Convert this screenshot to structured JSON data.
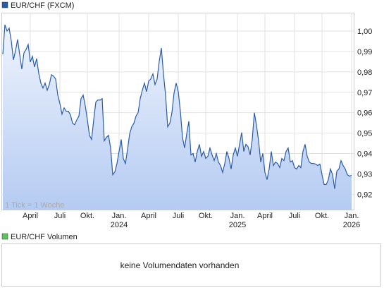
{
  "chart_data": {
    "type": "line",
    "title": "EUR/CHF (FXCM)",
    "note": "1 Tick = 1 Woche",
    "color": "#2a5caa",
    "fill_top": "#eef4fd",
    "fill_bottom": "#b5cbf2",
    "grid": true,
    "categories": [
      null,
      null,
      null,
      null,
      null,
      null,
      null,
      null,
      null,
      null,
      null,
      null,
      null,
      "April",
      null,
      null,
      null,
      null,
      null,
      null,
      null,
      null,
      null,
      null,
      null,
      null,
      null,
      "Juli",
      null,
      null,
      null,
      null,
      null,
      null,
      null,
      null,
      null,
      null,
      null,
      null,
      "Okt.",
      null,
      null,
      null,
      null,
      null,
      null,
      null,
      null,
      null,
      null,
      null,
      null,
      null,
      null,
      "Jan.\n2024",
      null,
      null,
      null,
      null,
      null,
      null,
      null,
      null,
      null,
      null,
      null,
      null,
      null,
      "April",
      null,
      null,
      null,
      null,
      null,
      null,
      null,
      null,
      null,
      null,
      null,
      null,
      null,
      "Juli",
      null,
      null,
      null,
      null,
      null,
      null,
      null,
      null,
      null,
      null,
      null,
      null,
      "Okt.",
      null,
      null,
      null,
      null,
      null,
      null,
      null,
      null,
      null,
      null,
      null,
      null,
      null,
      null,
      "Jan.\n2025",
      null,
      null,
      null,
      null,
      null,
      null,
      null,
      null,
      null,
      null,
      null,
      null,
      "April",
      null,
      null,
      null,
      null,
      null,
      null,
      null,
      null,
      null,
      null,
      null,
      null,
      null,
      "Juli",
      null,
      null,
      null,
      null,
      null,
      null,
      null,
      null,
      null,
      null,
      null,
      null,
      "Okt.",
      null,
      null,
      null,
      null,
      null,
      null,
      null,
      null,
      null,
      null,
      null,
      null,
      null,
      "Jan.\n2026"
    ],
    "values": [
      0.9886,
      1.0031,
      1.0,
      1.0014,
      0.9952,
      0.9859,
      0.9903,
      0.9959,
      0.9883,
      0.9814,
      0.9893,
      0.991,
      0.9934,
      0.9848,
      0.9876,
      0.9824,
      0.9865,
      0.9793,
      0.9745,
      0.9721,
      0.9745,
      0.971,
      0.9738,
      0.9786,
      0.9779,
      0.9765,
      0.9686,
      0.9645,
      0.9593,
      0.9624,
      0.9607,
      0.9607,
      0.9589,
      0.9548,
      0.9541,
      0.9565,
      0.9583,
      0.9669,
      0.9686,
      0.9634,
      0.9565,
      0.9489,
      0.9469,
      0.9565,
      0.9652,
      0.9662,
      0.9662,
      0.9669,
      0.9462,
      0.9479,
      0.9489,
      0.9427,
      0.9296,
      0.931,
      0.9351,
      0.941,
      0.9469,
      0.9376,
      0.9351,
      0.942,
      0.9496,
      0.9531,
      0.9548,
      0.9583,
      0.96,
      0.9669,
      0.971,
      0.9745,
      0.9703,
      0.9755,
      0.9765,
      0.979,
      0.9738,
      0.9765,
      0.9852,
      0.9917,
      0.979,
      0.9686,
      0.9531,
      0.9548,
      0.96,
      0.9696,
      0.9745,
      0.9703,
      0.9607,
      0.9479,
      0.9427,
      0.9496,
      0.9558,
      0.9393,
      0.94,
      0.9358,
      0.941,
      0.9445,
      0.9386,
      0.941,
      0.9376,
      0.9386,
      0.9427,
      0.9393,
      0.9365,
      0.94,
      0.9358,
      0.9341,
      0.9307,
      0.9351,
      0.941,
      0.9376,
      0.9324,
      0.9393,
      0.9427,
      0.9386,
      0.9445,
      0.9503,
      0.941,
      0.9445,
      0.9434,
      0.9393,
      0.9469,
      0.96,
      0.9538,
      0.9462,
      0.9358,
      0.94,
      0.9307,
      0.9272,
      0.9324,
      0.941,
      0.9341,
      0.9358,
      0.9351,
      0.9331,
      0.9376,
      0.9365,
      0.941,
      0.9427,
      0.9358,
      0.9365,
      0.9331,
      0.9324,
      0.9341,
      0.9331,
      0.941,
      0.9445,
      0.9386,
      0.9358,
      0.9351,
      0.9351,
      0.9348,
      0.9341,
      0.9348,
      0.9296,
      0.9248,
      0.9248,
      0.9272,
      0.9324,
      0.9296,
      0.9227,
      0.9313,
      0.9324,
      0.9365,
      0.9341,
      0.9324,
      0.9296,
      0.9289,
      0.9293
    ],
    "ylim": [
      0.9125,
      1.009
    ],
    "yticks": [
      {
        "value": 0.92,
        "label": "0,92"
      },
      {
        "value": 0.93,
        "label": "0,93"
      },
      {
        "value": 0.94,
        "label": "0,94"
      },
      {
        "value": 0.95,
        "label": "0,95"
      },
      {
        "value": 0.96,
        "label": "0,96"
      },
      {
        "value": 0.97,
        "label": "0,97"
      },
      {
        "value": 0.98,
        "label": "0,98"
      },
      {
        "value": 0.99,
        "label": "0,99"
      },
      {
        "value": 1.0,
        "label": "1,00"
      }
    ]
  },
  "volume_panel": {
    "title": "EUR/CHF Volumen",
    "color": "#5cc45c",
    "message": "keine Volumendaten vorhanden"
  }
}
